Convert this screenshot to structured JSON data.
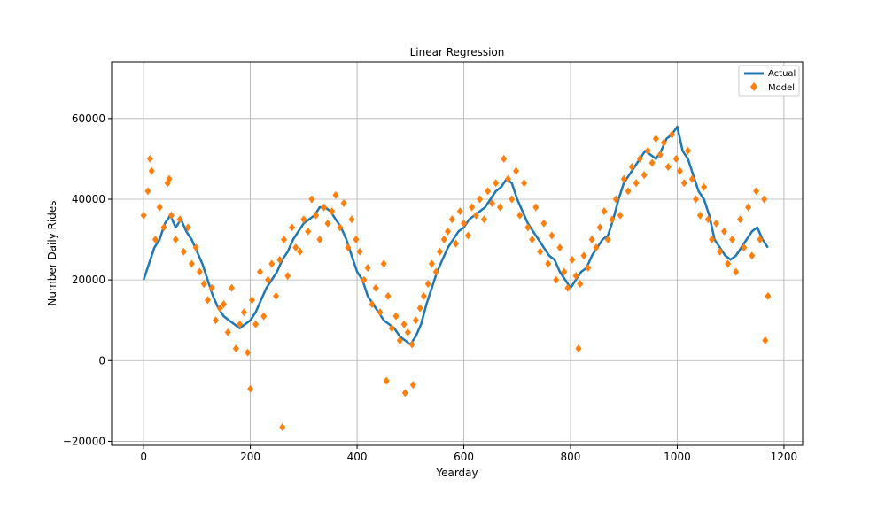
{
  "chart_data": {
    "type": "line",
    "title": "Linear Regression",
    "xlabel": "Yearday",
    "ylabel": "Number Daily Rides",
    "xlim": [
      -60,
      1235
    ],
    "ylim": [
      -21000,
      74000
    ],
    "xticks": [
      0,
      200,
      400,
      600,
      800,
      1000,
      1200
    ],
    "yticks": [
      -20000,
      0,
      20000,
      40000,
      60000
    ],
    "grid": true,
    "legend_position": "top-right",
    "series": [
      {
        "name": "Actual",
        "kind": "line",
        "color": "#1f77b4",
        "x": [
          0,
          10,
          20,
          30,
          40,
          50,
          60,
          70,
          80,
          90,
          100,
          110,
          120,
          130,
          140,
          150,
          160,
          170,
          180,
          190,
          200,
          210,
          220,
          230,
          240,
          250,
          260,
          270,
          280,
          290,
          300,
          310,
          320,
          330,
          340,
          350,
          360,
          370,
          380,
          390,
          400,
          410,
          420,
          430,
          440,
          450,
          460,
          470,
          480,
          490,
          500,
          510,
          520,
          530,
          540,
          550,
          560,
          570,
          580,
          590,
          600,
          610,
          620,
          630,
          640,
          650,
          660,
          670,
          680,
          690,
          700,
          710,
          720,
          730,
          740,
          750,
          760,
          770,
          780,
          790,
          800,
          810,
          820,
          830,
          840,
          850,
          860,
          870,
          880,
          890,
          900,
          910,
          920,
          930,
          940,
          950,
          960,
          970,
          980,
          990,
          1000,
          1010,
          1020,
          1030,
          1040,
          1050,
          1060,
          1070,
          1080,
          1090,
          1100,
          1110,
          1120,
          1130,
          1140,
          1150,
          1160,
          1170
        ],
        "values": [
          20000,
          24000,
          28000,
          30000,
          34000,
          36000,
          33000,
          35000,
          32000,
          30000,
          27000,
          24000,
          20000,
          16000,
          13000,
          11000,
          10000,
          9000,
          8000,
          9000,
          10000,
          12000,
          15000,
          18000,
          20000,
          22000,
          25000,
          27000,
          30000,
          32000,
          34000,
          35000,
          36000,
          38000,
          38000,
          37000,
          35000,
          33000,
          30000,
          26000,
          22000,
          20000,
          16000,
          14000,
          12000,
          10000,
          9000,
          8000,
          6000,
          5000,
          4000,
          6000,
          9000,
          14000,
          18000,
          22000,
          25000,
          28000,
          30000,
          32000,
          33000,
          35000,
          36000,
          37000,
          38000,
          40000,
          42000,
          43000,
          45000,
          44000,
          40000,
          37000,
          34000,
          32000,
          30000,
          28000,
          26000,
          25000,
          22000,
          20000,
          18000,
          20000,
          22000,
          23000,
          26000,
          28000,
          30000,
          31000,
          35000,
          40000,
          44000,
          46000,
          48000,
          50000,
          52000,
          51000,
          50000,
          52000,
          55000,
          56000,
          58000,
          52000,
          50000,
          46000,
          42000,
          40000,
          36000,
          30000,
          28000,
          26000,
          25000,
          26000,
          28000,
          30000,
          32000,
          33000,
          30000,
          28000
        ]
      },
      {
        "name": "Model",
        "kind": "scatter",
        "color": "#ff7f0e",
        "x": [
          0,
          8,
          15,
          22,
          30,
          38,
          45,
          52,
          60,
          68,
          75,
          83,
          90,
          98,
          105,
          113,
          120,
          128,
          135,
          143,
          150,
          158,
          165,
          173,
          180,
          188,
          195,
          203,
          210,
          218,
          225,
          233,
          240,
          248,
          255,
          263,
          270,
          278,
          285,
          293,
          300,
          308,
          315,
          323,
          330,
          338,
          345,
          353,
          360,
          368,
          375,
          383,
          390,
          398,
          405,
          413,
          420,
          428,
          435,
          443,
          450,
          458,
          465,
          473,
          480,
          488,
          495,
          503,
          510,
          518,
          525,
          533,
          540,
          548,
          555,
          563,
          570,
          578,
          585,
          593,
          600,
          608,
          615,
          623,
          630,
          638,
          645,
          653,
          660,
          668,
          675,
          683,
          690,
          698,
          705,
          713,
          720,
          728,
          735,
          743,
          750,
          758,
          765,
          773,
          780,
          788,
          795,
          803,
          810,
          818,
          825,
          833,
          840,
          848,
          855,
          863,
          870,
          878,
          885,
          893,
          900,
          908,
          915,
          923,
          930,
          938,
          945,
          953,
          960,
          968,
          975,
          983,
          990,
          998,
          1005,
          1013,
          1020,
          1028,
          1035,
          1043,
          1050,
          1058,
          1065,
          1073,
          1080,
          1088,
          1095,
          1103,
          1110,
          1118,
          1125,
          1133,
          1140,
          1148,
          1155,
          1163,
          1170,
          12,
          48,
          200,
          260,
          455,
          490,
          505,
          815,
          1165
        ],
        "values": [
          36000,
          42000,
          47000,
          30000,
          38000,
          33000,
          44000,
          36000,
          30000,
          35000,
          27000,
          33000,
          24000,
          28000,
          22000,
          19000,
          15000,
          18000,
          10000,
          13000,
          14000,
          7000,
          18000,
          3000,
          9000,
          12000,
          2000,
          15000,
          9000,
          22000,
          11000,
          20000,
          24000,
          16000,
          25000,
          30000,
          21000,
          33000,
          28000,
          27000,
          35000,
          32000,
          40000,
          36000,
          30000,
          38000,
          34000,
          37000,
          41000,
          33000,
          39000,
          28000,
          35000,
          30000,
          27000,
          20000,
          23000,
          14000,
          18000,
          12000,
          24000,
          16000,
          8000,
          11000,
          5000,
          9000,
          7000,
          4000,
          10000,
          13000,
          16000,
          19000,
          24000,
          22000,
          27000,
          30000,
          32000,
          35000,
          29000,
          37000,
          34000,
          31000,
          38000,
          36000,
          40000,
          35000,
          42000,
          39000,
          44000,
          38000,
          50000,
          45000,
          40000,
          47000,
          36000,
          44000,
          33000,
          30000,
          38000,
          27000,
          34000,
          24000,
          31000,
          20000,
          28000,
          22000,
          18000,
          25000,
          21000,
          19000,
          26000,
          23000,
          30000,
          28000,
          33000,
          37000,
          30000,
          35000,
          40000,
          36000,
          45000,
          42000,
          48000,
          44000,
          50000,
          46000,
          52000,
          49000,
          55000,
          51000,
          54000,
          48000,
          56000,
          50000,
          47000,
          44000,
          52000,
          45000,
          40000,
          36000,
          43000,
          35000,
          30000,
          34000,
          27000,
          32000,
          24000,
          30000,
          22000,
          35000,
          28000,
          38000,
          26000,
          42000,
          30000,
          40000,
          16000,
          50000,
          45000,
          -7000,
          -16500,
          -5000,
          -8000,
          -6000,
          3000,
          5000
        ]
      }
    ]
  }
}
